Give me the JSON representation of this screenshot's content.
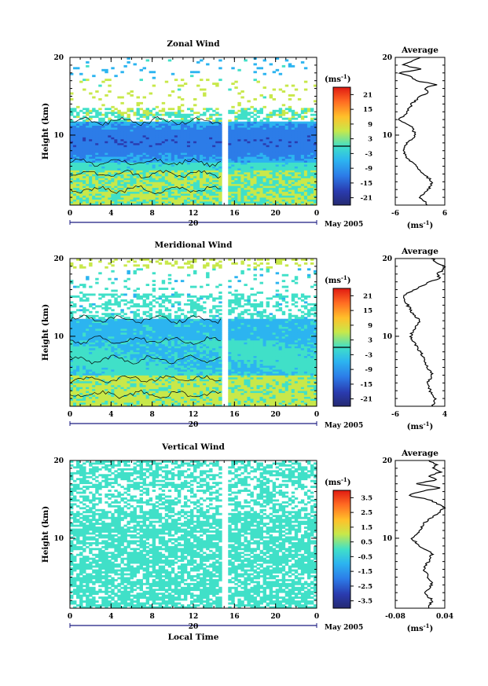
{
  "chart_data": [
    {
      "id": "zonal",
      "type": "heatmap",
      "title": "Zonal Wind",
      "ylabel": "Height (km)",
      "x_ticks": [
        "0",
        "4",
        "8",
        "12",
        "16",
        "20",
        "0"
      ],
      "xlim": [
        0,
        24
      ],
      "ylim": [
        1,
        20
      ],
      "y_ticks": [
        "20",
        "10"
      ],
      "date_tick": "20",
      "date_label": "May 2005",
      "colorbar": {
        "unit": "(ms",
        "unit_exp": "-1",
        "unit_close": ")",
        "labels": [
          "21",
          "15",
          "9",
          "3",
          "-3",
          "-9",
          "-15",
          "-21"
        ],
        "range": [
          -24,
          24
        ],
        "zero_line": true
      },
      "data_gap": [
        14.9,
        15.5
      ],
      "profile": {
        "title": "Average",
        "x_ticks": [
          "-6",
          "6"
        ],
        "xlim": [
          -6,
          6
        ],
        "xlabel": "(ms",
        "xlabel_exp": "-1",
        "xlabel_close": ")",
        "heights_km": [
          1.0,
          2.0,
          3.0,
          4.0,
          5.0,
          6.0,
          7.0,
          8.0,
          9.0,
          10.0,
          11.0,
          12.0,
          13.0,
          14.0,
          15.0,
          15.5,
          16.0,
          16.5,
          17.0,
          17.5,
          18.0,
          18.5,
          19.0,
          19.5,
          20.0
        ],
        "values": [
          2,
          0,
          2,
          3,
          1,
          -1,
          -3,
          -4,
          -3,
          -1,
          -2,
          -5,
          -3,
          -2,
          0,
          2,
          1,
          4,
          -1,
          -2,
          -5,
          0,
          -4,
          -2,
          0
        ]
      }
    },
    {
      "id": "meridional",
      "type": "heatmap",
      "title": "Meridional Wind",
      "ylabel": "Height (km)",
      "x_ticks": [
        "0",
        "4",
        "8",
        "12",
        "16",
        "20",
        "0"
      ],
      "xlim": [
        0,
        24
      ],
      "ylim": [
        1,
        20
      ],
      "y_ticks": [
        "20",
        "10"
      ],
      "date_tick": "20",
      "date_label": "May 2005",
      "colorbar": {
        "unit": "(ms",
        "unit_exp": "-1",
        "unit_close": ")",
        "labels": [
          "21",
          "15",
          "9",
          "3",
          "-3",
          "-9",
          "-15",
          "-21"
        ],
        "range": [
          -24,
          24
        ],
        "zero_line": true
      },
      "data_gap": [
        14.9,
        15.5
      ],
      "profile": {
        "title": "Average",
        "x_ticks": [
          "-6",
          "4"
        ],
        "xlim": [
          -6,
          4
        ],
        "xlabel": "(ms",
        "xlabel_exp": "-1",
        "xlabel_close": ")",
        "heights_km": [
          1.0,
          2.0,
          3.0,
          4.0,
          5.0,
          6.0,
          7.0,
          8.0,
          9.0,
          10.0,
          11.0,
          12.0,
          13.0,
          14.0,
          15.0,
          15.5,
          16.0,
          16.5,
          17.0,
          17.5,
          18.0,
          18.5,
          19.0,
          19.5,
          20.0
        ],
        "values": [
          1.5,
          2.0,
          1.0,
          0.5,
          1.5,
          0.5,
          0.0,
          -1.0,
          -2.0,
          -3.0,
          -2.0,
          -1.0,
          -2.5,
          -3.5,
          -4.5,
          -3.5,
          -2.0,
          -0.5,
          1.0,
          3.0,
          2.5,
          3.5,
          4.0,
          2.0,
          1.5
        ]
      }
    },
    {
      "id": "vertical",
      "type": "heatmap",
      "title": "Vertical Wind",
      "ylabel": "Height (km)",
      "xlabel": "Local Time",
      "x_ticks": [
        "0",
        "4",
        "8",
        "12",
        "16",
        "20",
        "0"
      ],
      "xlim": [
        0,
        24
      ],
      "ylim": [
        1,
        20
      ],
      "y_ticks": [
        "20",
        "10"
      ],
      "date_tick": "20",
      "date_label": "May 2005",
      "colorbar": {
        "unit": "(ms",
        "unit_exp": "-1",
        "unit_close": ")",
        "labels": [
          "3.5",
          "2.5",
          "1.5",
          "0.5",
          "-0.5",
          "-1.5",
          "-2.5",
          "-3.5"
        ],
        "range": [
          -4,
          4
        ],
        "zero_line": false
      },
      "data_gap": [
        14.9,
        15.5
      ],
      "profile": {
        "title": "Average",
        "x_ticks": [
          "-0.08",
          "0.04"
        ],
        "xlim": [
          -0.08,
          0.04
        ],
        "xlabel": "(ms",
        "xlabel_exp": "-1",
        "xlabel_close": ")",
        "heights_km": [
          1.0,
          2.0,
          3.0,
          4.0,
          5.0,
          6.0,
          7.0,
          8.0,
          9.0,
          10.0,
          11.0,
          12.0,
          13.0,
          14.0,
          15.0,
          15.5,
          16.0,
          16.5,
          17.0,
          17.5,
          18.0,
          18.5,
          19.0,
          19.5,
          20.0
        ],
        "values": [
          0.0,
          0.01,
          -0.01,
          0.01,
          0.0,
          -0.01,
          0.0,
          0.01,
          -0.02,
          -0.04,
          -0.02,
          -0.01,
          0.02,
          0.04,
          0.0,
          -0.05,
          -0.02,
          0.03,
          -0.03,
          0.02,
          0.0,
          0.03,
          0.01,
          0.02,
          0.0
        ]
      }
    }
  ]
}
